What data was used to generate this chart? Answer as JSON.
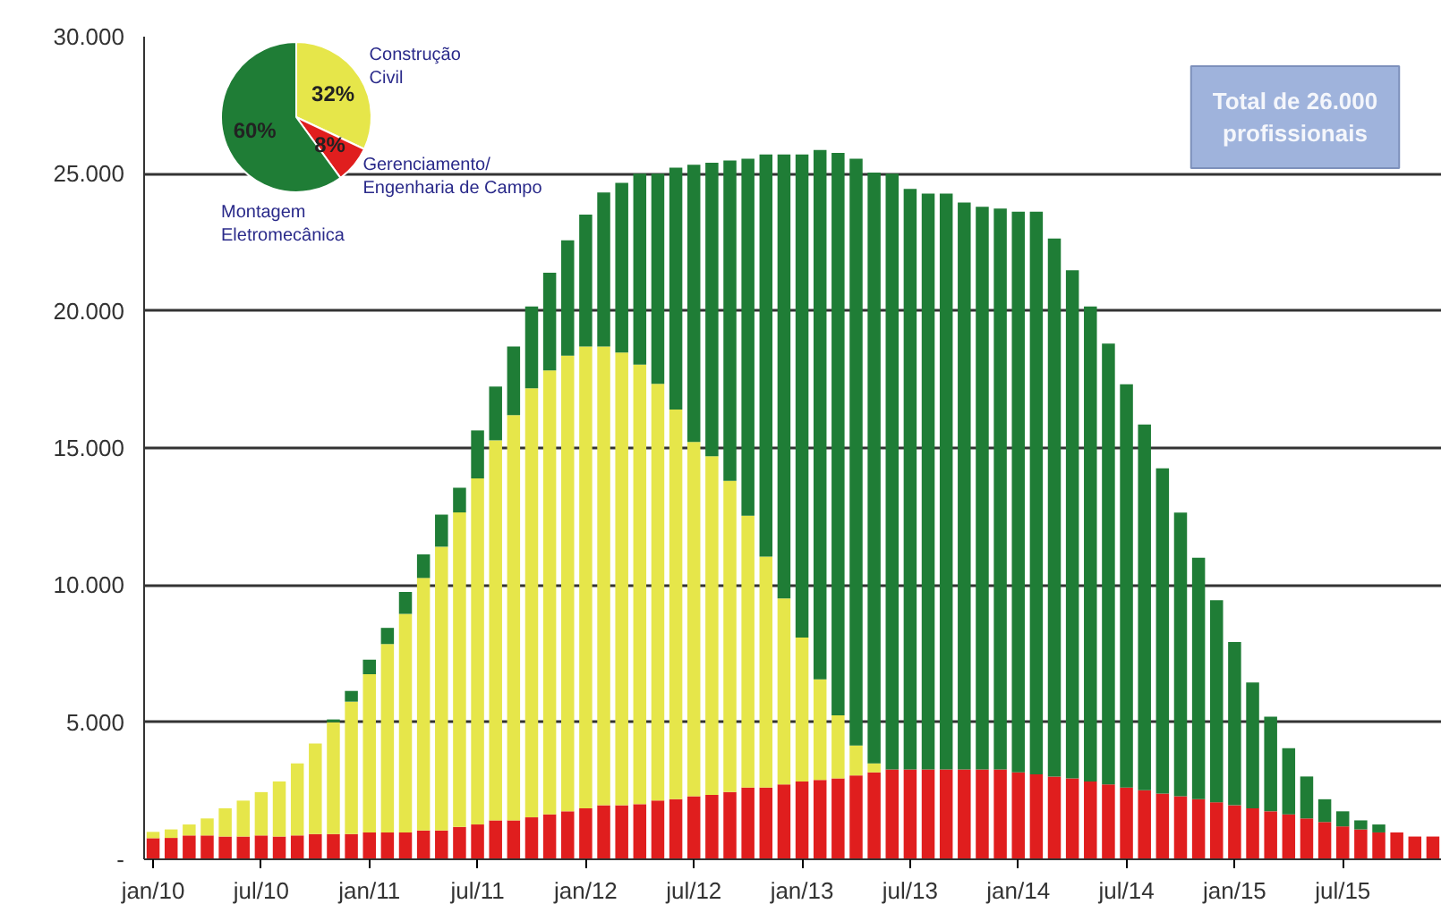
{
  "chart_data": [
    {
      "type": "bar",
      "stacked": true,
      "grid": "y",
      "categories": [
        "jan/10",
        null,
        null,
        null,
        null,
        null,
        "jul/10",
        null,
        null,
        null,
        null,
        null,
        "jan/11",
        null,
        null,
        null,
        null,
        null,
        "jul/11",
        null,
        null,
        null,
        null,
        null,
        "jan/12",
        null,
        null,
        null,
        null,
        null,
        "jul/12",
        null,
        null,
        null,
        null,
        null,
        "jan/13",
        null,
        null,
        null,
        null,
        null,
        "jul/13",
        null,
        null,
        null,
        null,
        null,
        "jan/14",
        null,
        null,
        null,
        null,
        null,
        "jul/14",
        null,
        null,
        null,
        null,
        null,
        "jan/15",
        null,
        null,
        null,
        null,
        null,
        "jul/15",
        null,
        null,
        null,
        null,
        null
      ],
      "series": [
        {
          "color": "#e01e1e",
          "values": [
            770,
            780,
            870,
            870,
            830,
            830,
            870,
            830,
            870,
            920,
            920,
            920,
            980,
            980,
            980,
            1050,
            1050,
            1180,
            1270,
            1420,
            1420,
            1530,
            1640,
            1750,
            1860,
            1970,
            1970,
            2010,
            2140,
            2190,
            2300,
            2350,
            2450,
            2620,
            2620,
            2730,
            2840,
            2890,
            2950,
            3060,
            3170,
            3280,
            3280,
            3280,
            3280,
            3280,
            3280,
            3280,
            3170,
            3100,
            3020,
            2950,
            2840,
            2730,
            2620,
            2520,
            2400,
            2300,
            2190,
            2080,
            1970,
            1860,
            1750,
            1640,
            1490,
            1360,
            1200,
            1090,
            980,
            980,
            830,
            830
          ]
        },
        {
          "color": "#e6e64a",
          "values": [
            230,
            310,
            400,
            620,
            1030,
            1310,
            1580,
            2010,
            2630,
            3300,
            4080,
            4830,
            5770,
            6870,
            7970,
            9210,
            10350,
            11470,
            12620,
            13860,
            14780,
            15650,
            16190,
            16620,
            16840,
            16730,
            16510,
            16030,
            15200,
            14210,
            12920,
            12350,
            11350,
            9910,
            8420,
            6780,
            5250,
            3670,
            2300,
            1090,
            330,
            0,
            0,
            0,
            0,
            0,
            0,
            0,
            0,
            0,
            0,
            0,
            0,
            0,
            0,
            0,
            0,
            0,
            0,
            0,
            0,
            0,
            0,
            0,
            0,
            0,
            0,
            0,
            0,
            0,
            0,
            0
          ]
        },
        {
          "color": "#1f7d36",
          "values": [
            0,
            0,
            0,
            0,
            0,
            0,
            0,
            0,
            0,
            0,
            100,
            390,
            530,
            590,
            800,
            860,
            1170,
            900,
            1750,
            1960,
            2500,
            2980,
            3560,
            4200,
            4810,
            5620,
            6190,
            6960,
            7660,
            8820,
            10110,
            10700,
            11680,
            13020,
            14660,
            16190,
            17610,
            19310,
            20510,
            21400,
            21540,
            21720,
            21170,
            21000,
            21000,
            20670,
            20520,
            20450,
            20450,
            20520,
            19620,
            18530,
            17320,
            16080,
            14700,
            13340,
            11860,
            10340,
            8810,
            7370,
            5950,
            4590,
            3450,
            2410,
            1530,
            830,
            550,
            330,
            290,
            0,
            0,
            0
          ]
        }
      ],
      "ylim": [
        0,
        30000
      ],
      "yticks": [
        {
          "value": 0,
          "label": "-"
        },
        {
          "value": 5000,
          "label": "5.000"
        },
        {
          "value": 10000,
          "label": "10.000"
        },
        {
          "value": 15000,
          "label": "15.000"
        },
        {
          "value": 20000,
          "label": "20.000"
        },
        {
          "value": 25000,
          "label": "25.000"
        },
        {
          "value": 30000,
          "label": "30.000"
        }
      ],
      "annotations": [
        "Total de 26.000 profissionais"
      ]
    },
    {
      "type": "pie",
      "categories": [
        "Construção Civil",
        "Gerenciamento/ Engenharia de Campo",
        "Montagem Eletromecânica"
      ],
      "values": [
        32,
        8,
        60
      ],
      "colors": [
        "#e6e64a",
        "#e01e1e",
        "#1f7d36"
      ],
      "value_labels": [
        "32%",
        "8%",
        "60%"
      ]
    }
  ]
}
